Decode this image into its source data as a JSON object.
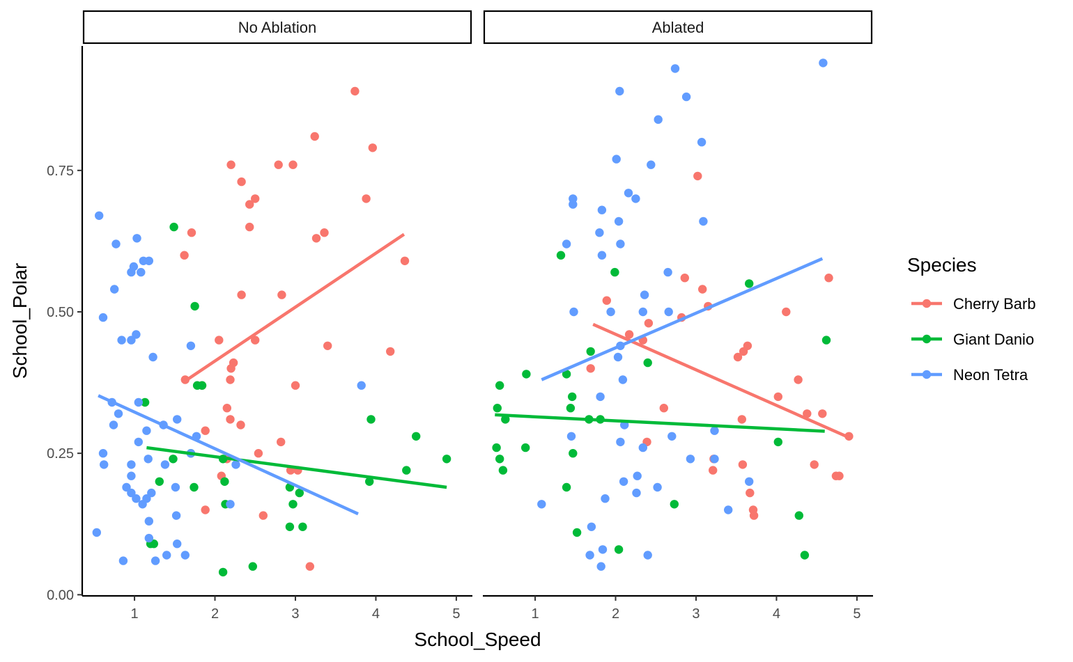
{
  "chart_data": {
    "type": "scatter",
    "xlabel": "School_Speed",
    "ylabel": "School_Polar",
    "xlim": [
      0.35,
      5.2
    ],
    "ylim": [
      -0.002,
      0.97
    ],
    "xticks": [
      "1",
      "2",
      "3",
      "4",
      "5"
    ],
    "yticks": [
      "0.00",
      "0.25",
      "0.50",
      "0.75"
    ],
    "legend_title": "Species",
    "legend_position": "right",
    "grid": false,
    "panels": [
      {
        "label": "No Ablation",
        "series": [
          {
            "name": "Cherry Barb",
            "color": "#F8766D",
            "points": [
              [
                3.74,
                0.89
              ],
              [
                3.24,
                0.81
              ],
              [
                3.96,
                0.79
              ],
              [
                2.79,
                0.76
              ],
              [
                2.97,
                0.76
              ],
              [
                2.2,
                0.76
              ],
              [
                2.33,
                0.73
              ],
              [
                3.88,
                0.7
              ],
              [
                2.5,
                0.7
              ],
              [
                2.43,
                0.69
              ],
              [
                2.43,
                0.65
              ],
              [
                1.71,
                0.64
              ],
              [
                3.36,
                0.64
              ],
              [
                3.26,
                0.63
              ],
              [
                1.62,
                0.6
              ],
              [
                4.36,
                0.59
              ],
              [
                2.33,
                0.53
              ],
              [
                2.83,
                0.53
              ],
              [
                2.05,
                0.45
              ],
              [
                2.5,
                0.45
              ],
              [
                3.4,
                0.44
              ],
              [
                4.18,
                0.43
              ],
              [
                2.23,
                0.41
              ],
              [
                2.2,
                0.4
              ],
              [
                2.19,
                0.38
              ],
              [
                1.84,
                0.37
              ],
              [
                1.63,
                0.38
              ],
              [
                3.0,
                0.37
              ],
              [
                2.15,
                0.33
              ],
              [
                2.19,
                0.31
              ],
              [
                2.32,
                0.3
              ],
              [
                1.88,
                0.29
              ],
              [
                2.82,
                0.27
              ],
              [
                2.54,
                0.25
              ],
              [
                2.15,
                0.24
              ],
              [
                2.08,
                0.21
              ],
              [
                2.94,
                0.22
              ],
              [
                3.03,
                0.22
              ],
              [
                1.88,
                0.15
              ],
              [
                2.6,
                0.14
              ],
              [
                3.18,
                0.05
              ]
            ],
            "fit": [
              [
                1.6,
                0.375
              ],
              [
                4.35,
                0.637
              ]
            ]
          },
          {
            "name": "Giant Danio",
            "color": "#00BA38",
            "points": [
              [
                1.49,
                0.65
              ],
              [
                1.75,
                0.51
              ],
              [
                1.78,
                0.37
              ],
              [
                1.84,
                0.37
              ],
              [
                1.13,
                0.34
              ],
              [
                1.7,
                0.25
              ],
              [
                1.48,
                0.24
              ],
              [
                2.1,
                0.24
              ],
              [
                4.5,
                0.28
              ],
              [
                4.88,
                0.24
              ],
              [
                3.94,
                0.31
              ],
              [
                4.38,
                0.22
              ],
              [
                1.31,
                0.2
              ],
              [
                2.12,
                0.2
              ],
              [
                3.92,
                0.2
              ],
              [
                1.74,
                0.19
              ],
              [
                2.93,
                0.19
              ],
              [
                3.05,
                0.18
              ],
              [
                2.13,
                0.16
              ],
              [
                2.97,
                0.16
              ],
              [
                3.09,
                0.12
              ],
              [
                2.93,
                0.12
              ],
              [
                1.2,
                0.09
              ],
              [
                1.24,
                0.09
              ],
              [
                2.47,
                0.05
              ],
              [
                2.1,
                0.04
              ]
            ],
            "fit": [
              [
                1.15,
                0.26
              ],
              [
                4.88,
                0.19
              ]
            ]
          },
          {
            "name": "Neon Tetra",
            "color": "#619CFF",
            "points": [
              [
                0.56,
                0.67
              ],
              [
                1.03,
                0.63
              ],
              [
                0.77,
                0.62
              ],
              [
                1.18,
                0.59
              ],
              [
                1.11,
                0.59
              ],
              [
                0.99,
                0.58
              ],
              [
                1.08,
                0.57
              ],
              [
                0.96,
                0.57
              ],
              [
                0.75,
                0.54
              ],
              [
                0.61,
                0.49
              ],
              [
                1.02,
                0.46
              ],
              [
                0.96,
                0.45
              ],
              [
                0.84,
                0.45
              ],
              [
                1.7,
                0.44
              ],
              [
                1.23,
                0.42
              ],
              [
                3.82,
                0.37
              ],
              [
                0.72,
                0.34
              ],
              [
                1.05,
                0.34
              ],
              [
                0.8,
                0.32
              ],
              [
                0.74,
                0.3
              ],
              [
                1.53,
                0.31
              ],
              [
                1.36,
                0.3
              ],
              [
                1.15,
                0.29
              ],
              [
                1.77,
                0.28
              ],
              [
                1.05,
                0.27
              ],
              [
                1.7,
                0.25
              ],
              [
                0.61,
                0.25
              ],
              [
                0.62,
                0.23
              ],
              [
                0.96,
                0.23
              ],
              [
                1.17,
                0.24
              ],
              [
                1.38,
                0.23
              ],
              [
                2.26,
                0.23
              ],
              [
                0.96,
                0.21
              ],
              [
                1.51,
                0.19
              ],
              [
                0.9,
                0.19
              ],
              [
                0.96,
                0.18
              ],
              [
                1.21,
                0.18
              ],
              [
                1.15,
                0.17
              ],
              [
                1.02,
                0.17
              ],
              [
                2.19,
                0.16
              ],
              [
                1.1,
                0.16
              ],
              [
                1.52,
                0.14
              ],
              [
                1.18,
                0.13
              ],
              [
                0.53,
                0.11
              ],
              [
                1.18,
                0.1
              ],
              [
                1.53,
                0.09
              ],
              [
                1.4,
                0.07
              ],
              [
                1.63,
                0.07
              ],
              [
                1.26,
                0.06
              ],
              [
                0.86,
                0.06
              ]
            ],
            "fit": [
              [
                0.55,
                0.352
              ],
              [
                3.78,
                0.143
              ]
            ]
          }
        ]
      },
      {
        "label": "Ablated",
        "series": [
          {
            "name": "Cherry Barb",
            "color": "#F8766D",
            "points": [
              [
                3.02,
                0.74
              ],
              [
                2.86,
                0.56
              ],
              [
                3.08,
                0.54
              ],
              [
                4.65,
                0.56
              ],
              [
                1.89,
                0.52
              ],
              [
                3.15,
                0.51
              ],
              [
                4.12,
                0.5
              ],
              [
                2.41,
                0.48
              ],
              [
                2.82,
                0.49
              ],
              [
                2.17,
                0.46
              ],
              [
                2.34,
                0.45
              ],
              [
                3.64,
                0.44
              ],
              [
                3.59,
                0.43
              ],
              [
                3.52,
                0.42
              ],
              [
                1.69,
                0.4
              ],
              [
                4.27,
                0.38
              ],
              [
                4.02,
                0.35
              ],
              [
                2.6,
                0.33
              ],
              [
                4.38,
                0.32
              ],
              [
                4.57,
                0.32
              ],
              [
                3.57,
                0.31
              ],
              [
                4.9,
                0.28
              ],
              [
                2.39,
                0.27
              ],
              [
                3.58,
                0.23
              ],
              [
                3.22,
                0.24
              ],
              [
                4.47,
                0.23
              ],
              [
                3.21,
                0.22
              ],
              [
                4.78,
                0.21
              ],
              [
                4.74,
                0.21
              ],
              [
                3.67,
                0.18
              ],
              [
                3.71,
                0.15
              ],
              [
                3.72,
                0.14
              ]
            ],
            "fit": [
              [
                1.72,
                0.478
              ],
              [
                4.9,
                0.278
              ]
            ]
          },
          {
            "name": "Giant Danio",
            "color": "#00BA38",
            "points": [
              [
                1.32,
                0.6
              ],
              [
                1.99,
                0.57
              ],
              [
                3.66,
                0.55
              ],
              [
                4.62,
                0.45
              ],
              [
                1.69,
                0.43
              ],
              [
                2.4,
                0.41
              ],
              [
                0.89,
                0.39
              ],
              [
                1.39,
                0.39
              ],
              [
                0.56,
                0.37
              ],
              [
                1.46,
                0.35
              ],
              [
                0.53,
                0.33
              ],
              [
                1.44,
                0.33
              ],
              [
                0.63,
                0.31
              ],
              [
                1.81,
                0.31
              ],
              [
                1.67,
                0.31
              ],
              [
                4.02,
                0.27
              ],
              [
                0.52,
                0.26
              ],
              [
                0.88,
                0.26
              ],
              [
                1.47,
                0.25
              ],
              [
                0.56,
                0.24
              ],
              [
                0.6,
                0.22
              ],
              [
                1.39,
                0.19
              ],
              [
                2.73,
                0.16
              ],
              [
                4.28,
                0.14
              ],
              [
                1.52,
                0.11
              ],
              [
                2.04,
                0.08
              ],
              [
                4.35,
                0.07
              ]
            ],
            "fit": [
              [
                0.5,
                0.318
              ],
              [
                4.6,
                0.289
              ]
            ]
          },
          {
            "name": "Neon Tetra",
            "color": "#619CFF",
            "points": [
              [
                4.58,
                0.94
              ],
              [
                2.74,
                0.93
              ],
              [
                2.05,
                0.89
              ],
              [
                2.88,
                0.88
              ],
              [
                2.53,
                0.84
              ],
              [
                3.07,
                0.8
              ],
              [
                2.01,
                0.77
              ],
              [
                2.44,
                0.76
              ],
              [
                2.16,
                0.71
              ],
              [
                2.25,
                0.7
              ],
              [
                1.47,
                0.7
              ],
              [
                1.47,
                0.69
              ],
              [
                1.83,
                0.68
              ],
              [
                3.09,
                0.66
              ],
              [
                2.04,
                0.66
              ],
              [
                1.8,
                0.64
              ],
              [
                2.06,
                0.62
              ],
              [
                1.39,
                0.62
              ],
              [
                1.83,
                0.6
              ],
              [
                2.65,
                0.57
              ],
              [
                2.36,
                0.53
              ],
              [
                1.48,
                0.5
              ],
              [
                1.94,
                0.5
              ],
              [
                2.34,
                0.5
              ],
              [
                2.66,
                0.5
              ],
              [
                2.06,
                0.44
              ],
              [
                2.03,
                0.42
              ],
              [
                2.09,
                0.38
              ],
              [
                1.81,
                0.35
              ],
              [
                3.23,
                0.29
              ],
              [
                2.11,
                0.3
              ],
              [
                1.45,
                0.28
              ],
              [
                2.06,
                0.27
              ],
              [
                2.7,
                0.28
              ],
              [
                2.34,
                0.26
              ],
              [
                2.93,
                0.24
              ],
              [
                3.23,
                0.24
              ],
              [
                2.27,
                0.21
              ],
              [
                2.1,
                0.2
              ],
              [
                3.66,
                0.2
              ],
              [
                2.52,
                0.19
              ],
              [
                2.26,
                0.18
              ],
              [
                1.08,
                0.16
              ],
              [
                1.87,
                0.17
              ],
              [
                3.4,
                0.15
              ],
              [
                1.7,
                0.12
              ],
              [
                1.84,
                0.08
              ],
              [
                1.68,
                0.07
              ],
              [
                2.4,
                0.07
              ],
              [
                1.82,
                0.05
              ]
            ],
            "fit": [
              [
                1.08,
                0.38
              ],
              [
                4.57,
                0.594
              ]
            ]
          }
        ]
      }
    ]
  }
}
